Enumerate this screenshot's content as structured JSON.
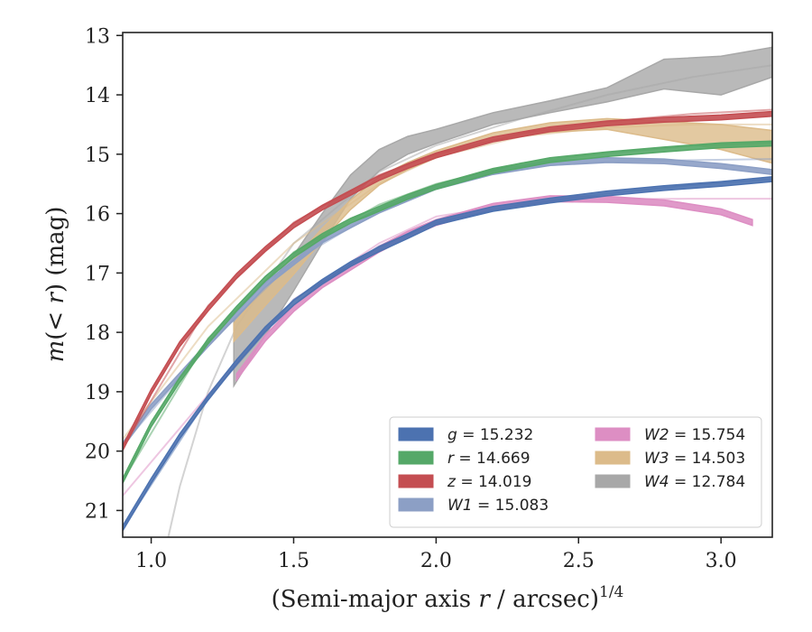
{
  "chart_data": {
    "type": "line",
    "title": "",
    "xlabel": "(Semi-major axis r / arcsec)",
    "xlabel_parts": {
      "pre": "(Semi-major axis ",
      "var": "r",
      "post": " / arcsec)",
      "sup": "1/4"
    },
    "ylabel": "m(<r) (mag)",
    "ylabel_parts": {
      "var": "m",
      "mid": "(< ",
      "var2": "r",
      "post": ") (mag)"
    },
    "xlim": [
      0.9,
      3.18
    ],
    "ylim": [
      21.45,
      12.95
    ],
    "y_inverted": true,
    "x_ticks": [
      1.0,
      1.5,
      2.0,
      2.5,
      3.0
    ],
    "x_tick_labels": [
      "1.0",
      "1.5",
      "2.0",
      "2.5",
      "3.0"
    ],
    "y_ticks": [
      13,
      14,
      15,
      16,
      17,
      18,
      19,
      20,
      21
    ],
    "y_tick_labels": [
      "13",
      "14",
      "15",
      "16",
      "17",
      "18",
      "19",
      "20",
      "21"
    ],
    "grid": false,
    "legend_position": "bottom-right",
    "series": [
      {
        "name": "g = 15.232",
        "label_var": "g",
        "label_val": "= 15.232",
        "color": "#4c72b0",
        "x": [
          0.9,
          1.0,
          1.1,
          1.2,
          1.3,
          1.4,
          1.5,
          1.6,
          1.7,
          1.8,
          1.9,
          2.0,
          2.2,
          2.4,
          2.6,
          2.8,
          3.0,
          3.18
        ],
        "y": [
          21.3,
          20.5,
          19.75,
          19.1,
          18.5,
          17.95,
          17.5,
          17.15,
          16.85,
          16.6,
          16.38,
          16.15,
          15.92,
          15.78,
          15.66,
          15.57,
          15.5,
          15.42
        ],
        "band": 0.04,
        "model": {
          "x": [
            0.9,
            1.2,
            1.5,
            1.8,
            2.0,
            2.3,
            2.6,
            2.9,
            3.18
          ],
          "y": [
            21.3,
            19.1,
            17.45,
            16.55,
            16.15,
            15.85,
            15.66,
            15.52,
            15.42
          ]
        }
      },
      {
        "name": "r = 14.669",
        "label_var": "r",
        "label_val": "= 14.669",
        "color": "#55a868",
        "x": [
          0.9,
          1.0,
          1.1,
          1.2,
          1.3,
          1.4,
          1.5,
          1.6,
          1.7,
          1.8,
          1.9,
          2.0,
          2.2,
          2.4,
          2.6,
          2.8,
          3.0,
          3.18
        ],
        "y": [
          20.5,
          19.55,
          18.8,
          18.15,
          17.6,
          17.1,
          16.7,
          16.38,
          16.12,
          15.92,
          15.72,
          15.55,
          15.28,
          15.1,
          15.0,
          14.92,
          14.85,
          14.82
        ],
        "band": 0.04,
        "model": {
          "x": [
            0.9,
            1.2,
            1.5,
            1.8,
            2.0,
            2.3,
            2.6,
            2.9,
            3.18
          ],
          "y": [
            20.5,
            18.1,
            16.65,
            15.85,
            15.5,
            15.15,
            14.98,
            14.86,
            14.8
          ]
        }
      },
      {
        "name": "z = 14.019",
        "label_var": "z",
        "label_val": "= 14.019",
        "color": "#c44e52",
        "x": [
          0.9,
          1.0,
          1.1,
          1.2,
          1.3,
          1.4,
          1.5,
          1.6,
          1.7,
          1.8,
          1.9,
          2.0,
          2.2,
          2.4,
          2.6,
          2.8,
          3.0,
          3.18
        ],
        "y": [
          19.95,
          19.0,
          18.2,
          17.6,
          17.05,
          16.6,
          16.2,
          15.9,
          15.65,
          15.4,
          15.2,
          15.02,
          14.75,
          14.58,
          14.48,
          14.42,
          14.38,
          14.32
        ],
        "band": 0.04,
        "model": {
          "x": [
            0.9,
            1.2,
            1.5,
            1.8,
            2.0,
            2.3,
            2.6,
            2.9,
            3.18
          ],
          "y": [
            19.95,
            17.55,
            16.15,
            15.35,
            15.0,
            14.65,
            14.45,
            14.32,
            14.25
          ]
        }
      },
      {
        "name": "W1 = 15.083",
        "label_var": "W1",
        "label_val": "= 15.083",
        "color": "#8c9fc5",
        "x": [
          0.9,
          1.0,
          1.2,
          1.4,
          1.6,
          1.8,
          2.0,
          2.2,
          2.4,
          2.6,
          2.8,
          3.0,
          3.18
        ],
        "y": [
          19.9,
          19.25,
          18.2,
          17.2,
          16.45,
          15.95,
          15.55,
          15.3,
          15.15,
          15.1,
          15.12,
          15.2,
          15.3
        ],
        "band": 0.04,
        "model": {
          "x": [
            0.9,
            1.2,
            1.5,
            1.8,
            2.0,
            2.3,
            2.6,
            2.9,
            3.18
          ],
          "y": [
            19.9,
            18.2,
            16.8,
            15.95,
            15.55,
            15.22,
            15.12,
            15.1,
            15.08
          ]
        }
      },
      {
        "name": "W2 = 15.754",
        "label_var": "W2",
        "label_val": "= 15.754",
        "color": "#dd8ec3",
        "x": [
          1.3,
          1.4,
          1.5,
          1.6,
          1.7,
          1.8,
          1.9,
          2.0,
          2.2,
          2.4,
          2.6,
          2.8,
          3.0,
          3.11
        ],
        "y": [
          18.75,
          18.1,
          17.6,
          17.2,
          16.9,
          16.6,
          16.35,
          16.15,
          15.88,
          15.75,
          15.76,
          15.82,
          15.97,
          16.15
        ],
        "band": 0.05,
        "model": {
          "x": [
            0.9,
            1.2,
            1.5,
            1.8,
            2.0,
            2.3,
            2.6,
            2.9,
            3.18
          ],
          "y": [
            20.75,
            19.05,
            17.45,
            16.5,
            16.05,
            15.82,
            15.76,
            15.75,
            15.75
          ]
        }
      },
      {
        "name": "W3 = 14.503",
        "label_var": "W3",
        "label_val": "= 14.503",
        "color": "#dcbb8a",
        "x": [
          1.29,
          1.4,
          1.5,
          1.6,
          1.7,
          1.8,
          1.9,
          2.0,
          2.2,
          2.4,
          2.6,
          2.8,
          3.0,
          3.18
        ],
        "y": [
          18.0,
          17.4,
          16.9,
          16.35,
          15.85,
          15.45,
          15.2,
          15.0,
          14.7,
          14.55,
          14.5,
          14.65,
          14.8,
          15.0
        ],
        "band_lo": [
          0.15,
          0.15,
          0.12,
          0.1,
          0.08,
          0.07,
          0.06,
          0.06,
          0.06,
          0.08,
          0.08,
          0.1,
          0.12,
          0.15
        ],
        "band_hi": [
          0.15,
          0.15,
          0.12,
          0.1,
          0.08,
          0.07,
          0.06,
          0.06,
          0.06,
          0.08,
          0.1,
          0.2,
          0.3,
          0.4
        ],
        "model": {
          "x": [
            0.9,
            1.2,
            1.5,
            1.8,
            2.0,
            2.3,
            2.6,
            2.9,
            3.18
          ],
          "y": [
            19.8,
            17.9,
            16.5,
            15.5,
            15.05,
            14.7,
            14.55,
            14.5,
            14.5
          ]
        }
      },
      {
        "name": "W4 = 12.784",
        "label_var": "W4",
        "label_val": "= 12.784",
        "color": "#a8a8a8",
        "x": [
          1.29,
          1.4,
          1.5,
          1.6,
          1.7,
          1.8,
          1.9,
          2.0,
          2.2,
          2.4,
          2.6,
          2.8,
          3.0,
          3.18
        ],
        "y": [
          18.35,
          17.65,
          17.0,
          16.25,
          15.55,
          15.1,
          14.85,
          14.7,
          14.4,
          14.2,
          14.0,
          13.65,
          13.7,
          13.45
        ],
        "band_lo": [
          0.55,
          0.4,
          0.3,
          0.25,
          0.2,
          0.18,
          0.15,
          0.12,
          0.1,
          0.1,
          0.12,
          0.25,
          0.3,
          0.25
        ],
        "band_hi": [
          0.55,
          0.4,
          0.3,
          0.25,
          0.2,
          0.18,
          0.15,
          0.12,
          0.1,
          0.1,
          0.12,
          0.25,
          0.35,
          0.25
        ],
        "model": {
          "x": [
            1.06,
            1.1,
            1.15,
            1.2,
            1.3,
            1.5,
            1.8,
            2.0,
            2.3,
            2.6,
            2.9,
            3.18
          ],
          "y": [
            21.45,
            20.6,
            19.8,
            19.0,
            17.9,
            16.5,
            15.3,
            14.85,
            14.4,
            14.0,
            13.7,
            13.5
          ]
        }
      }
    ]
  }
}
